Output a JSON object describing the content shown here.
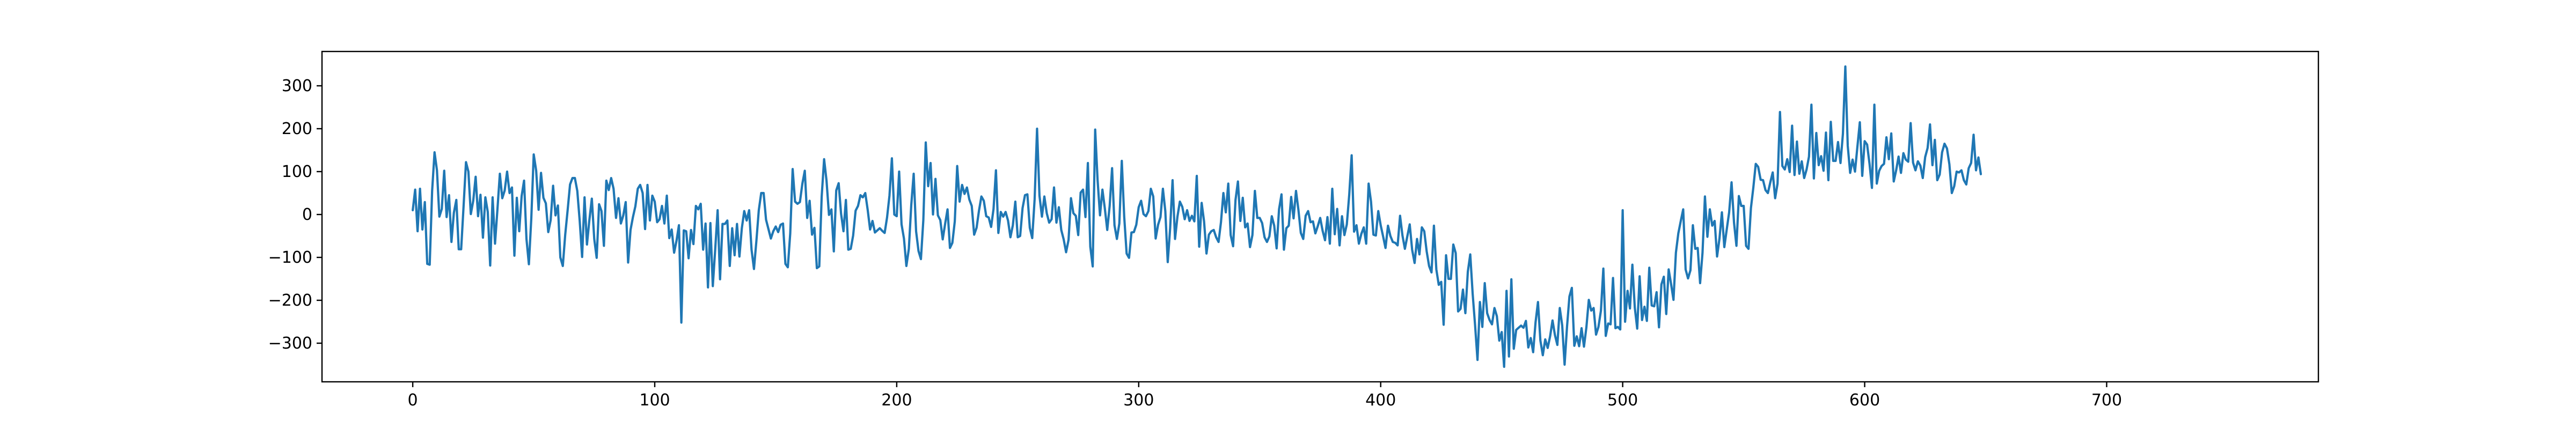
{
  "chart_data": {
    "type": "line",
    "title": "",
    "xlabel": "",
    "ylabel": "",
    "xlim": [
      -37.5,
      787.5
    ],
    "ylim": [
      -390,
      380
    ],
    "x_ticks": [
      0,
      100,
      200,
      300,
      400,
      500,
      600,
      700
    ],
    "y_ticks": [
      -300,
      -200,
      -100,
      0,
      100,
      200,
      300
    ],
    "grid": false,
    "legend": "none",
    "line_color": "#1f77b4",
    "series": [
      {
        "x_start": 0,
        "x_step": 1,
        "values": [
          10,
          58,
          -39,
          60,
          -35,
          29,
          -115,
          -117,
          55,
          145,
          103,
          -5,
          13,
          102,
          -6,
          45,
          -64,
          4,
          34,
          -81,
          -81,
          19,
          122,
          100,
          1,
          32,
          88,
          -4,
          46,
          -54,
          40,
          6,
          -119,
          40,
          -68,
          12,
          95,
          38,
          56,
          100,
          50,
          63,
          -96,
          39,
          -39,
          43,
          79,
          -57,
          -116,
          -9,
          140,
          102,
          11,
          97,
          39,
          26,
          -41,
          -13,
          67,
          -2,
          21,
          -100,
          -120,
          -47,
          10,
          70,
          85,
          85,
          55,
          -15,
          -99,
          40,
          -70,
          -12,
          37,
          -57,
          -101,
          24,
          8,
          -73,
          79,
          57,
          85,
          60,
          -8,
          38,
          -21,
          -2,
          29,
          -112,
          -36,
          -6,
          19,
          60,
          69,
          50,
          -34,
          69,
          -14,
          44,
          30,
          -18,
          -11,
          20,
          -21,
          44,
          -55,
          -35,
          -89,
          -61,
          -25,
          -252,
          -37,
          -39,
          -102,
          -36,
          -69,
          20,
          12,
          25,
          -82,
          -21,
          -170,
          -20,
          -167,
          -81,
          10,
          -151,
          -22,
          -22,
          -14,
          -120,
          -32,
          -95,
          -22,
          -98,
          -32,
          8,
          -14,
          10,
          -82,
          -127,
          -62,
          10,
          50,
          50,
          -12,
          -34,
          -56,
          -39,
          -28,
          -41,
          -24,
          -21,
          -115,
          -123,
          -44,
          106,
          30,
          25,
          29,
          72,
          102,
          -8,
          32,
          -47,
          -31,
          -125,
          -121,
          42,
          129,
          79,
          -1,
          12,
          -86,
          56,
          73,
          2,
          -39,
          34,
          -82,
          -80,
          -49,
          9,
          20,
          45,
          40,
          50,
          11,
          -35,
          -15,
          -42,
          -37,
          -32,
          -38,
          -43,
          -7,
          44,
          131,
          0,
          -4,
          100,
          -23,
          -56,
          -120,
          -80,
          22,
          95,
          -39,
          -85,
          -104,
          -13,
          168,
          66,
          120,
          0,
          83,
          -2,
          -13,
          -58,
          -22,
          12,
          -78,
          -66,
          -16,
          113,
          30,
          69,
          48,
          63,
          35,
          20,
          -47,
          -31,
          9,
          42,
          32,
          -4,
          -7,
          -29,
          13,
          103,
          -43,
          6,
          -5,
          6,
          -14,
          -53,
          -25,
          30,
          -53,
          -50,
          15,
          45,
          47,
          -31,
          -55,
          36,
          200,
          44,
          -5,
          42,
          3,
          -19,
          -11,
          63,
          -19,
          17,
          -36,
          -58,
          -88,
          -59,
          38,
          3,
          -3,
          -48,
          51,
          58,
          -6,
          120,
          -75,
          -121,
          198,
          80,
          -2,
          58,
          14,
          -36,
          20,
          108,
          -25,
          -57,
          -21,
          125,
          -5,
          -91,
          -101,
          -42,
          -41,
          -24,
          17,
          32,
          1,
          -4,
          8,
          60,
          42,
          -56,
          -24,
          -6,
          60,
          8,
          -111,
          -32,
          80,
          -57,
          -5,
          30,
          18,
          -11,
          10,
          -15,
          -3,
          -16,
          90,
          -75,
          27,
          -16,
          -91,
          -47,
          -39,
          -36,
          -53,
          -64,
          -18,
          50,
          5,
          72,
          -48,
          -74,
          34,
          77,
          -15,
          39,
          -30,
          -21,
          -76,
          -48,
          55,
          -8,
          -8,
          -20,
          -53,
          -64,
          -51,
          -4,
          -26,
          -79,
          12,
          47,
          -82,
          -32,
          -26,
          41,
          -9,
          55,
          11,
          -43,
          -57,
          -3,
          8,
          -18,
          -16,
          -44,
          -27,
          -8,
          -38,
          -60,
          -6,
          -68,
          60,
          -46,
          13,
          -72,
          -4,
          -48,
          -23,
          46,
          138,
          -40,
          -25,
          -68,
          -45,
          -30,
          -68,
          72,
          30,
          -47,
          -49,
          8,
          -25,
          -51,
          -78,
          -26,
          -50,
          -64,
          -66,
          -72,
          -3,
          -49,
          -80,
          -51,
          -23,
          -82,
          -113,
          -57,
          -93,
          -30,
          -39,
          -86,
          -120,
          -135,
          -26,
          -128,
          -164,
          -157,
          -257,
          -95,
          -150,
          -150,
          -70,
          -90,
          -226,
          -220,
          -175,
          -230,
          -133,
          -93,
          -185,
          -258,
          -339,
          -204,
          -262,
          -160,
          -230,
          -246,
          -256,
          -218,
          -237,
          -294,
          -274,
          -355,
          -178,
          -331,
          -151,
          -313,
          -269,
          -264,
          -259,
          -264,
          -248,
          -310,
          -288,
          -321,
          -251,
          -204,
          -294,
          -328,
          -291,
          -311,
          -284,
          -247,
          -281,
          -304,
          -218,
          -258,
          -350,
          -262,
          -191,
          -171,
          -306,
          -284,
          -307,
          -265,
          -308,
          -263,
          -199,
          -224,
          -218,
          -280,
          -262,
          -224,
          -126,
          -283,
          -254,
          -256,
          -148,
          -265,
          -262,
          -268,
          10,
          -250,
          -178,
          -219,
          -117,
          -217,
          -266,
          -144,
          -246,
          -215,
          -248,
          -124,
          -212,
          -214,
          -181,
          -263,
          -163,
          -145,
          -232,
          -128,
          -162,
          -199,
          -89,
          -44,
          -15,
          12,
          -128,
          -149,
          -130,
          -25,
          -80,
          -78,
          -160,
          -89,
          42,
          -52,
          12,
          -26,
          -15,
          -98,
          -56,
          5,
          -76,
          -35,
          5,
          75,
          -19,
          -73,
          43,
          20,
          20,
          -73,
          -80,
          15,
          63,
          118,
          111,
          81,
          80,
          57,
          50,
          75,
          98,
          38,
          72,
          239,
          113,
          105,
          129,
          99,
          207,
          92,
          170,
          95,
          124,
          85,
          105,
          135,
          256,
          84,
          190,
          115,
          136,
          102,
          191,
          80,
          216,
          125,
          125,
          169,
          120,
          188,
          345,
          160,
          97,
          128,
          100,
          158,
          215,
          90,
          171,
          163,
          118,
          62,
          256,
          72,
          102,
          113,
          118,
          180,
          129,
          189,
          77,
          103,
          135,
          97,
          143,
          128,
          123,
          213,
          121,
          103,
          124,
          114,
          85,
          134,
          155,
          210,
          115,
          174,
          80,
          93,
          145,
          165,
          154,
          117,
          50,
          66,
          100,
          98,
          103,
          80,
          70,
          108,
          120,
          186,
          103,
          133,
          94
        ]
      }
    ]
  }
}
